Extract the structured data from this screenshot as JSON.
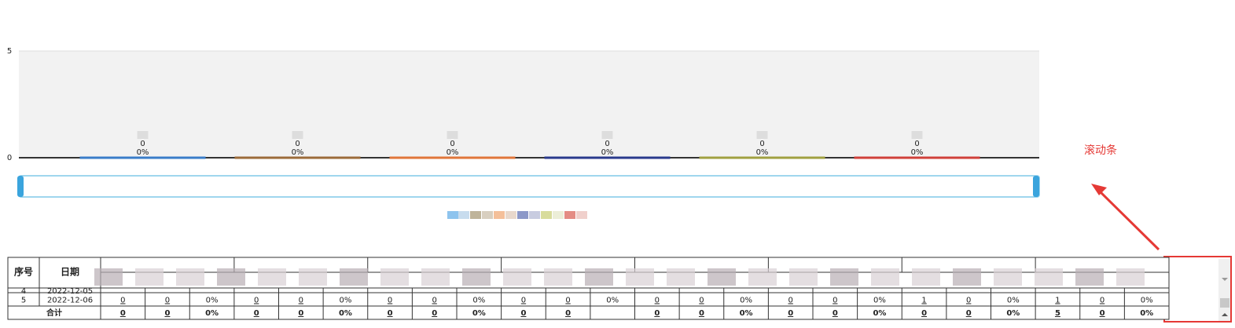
{
  "chart_data": {
    "type": "bar",
    "categories": [
      null,
      null,
      null,
      null,
      null,
      null
    ],
    "values": [
      0,
      0,
      0,
      0,
      0,
      0
    ],
    "colors": [
      "#3a7dc9",
      "#9c6b3a",
      "#e0763a",
      "#2a3a8c",
      "#a0a040",
      "#d0403a"
    ],
    "percent_values": [
      0,
      0,
      0,
      0,
      0,
      0
    ],
    "percent_labels": [
      "0%",
      "0%",
      "0%",
      "0%",
      "0%",
      "0%"
    ],
    "ylim": [
      0,
      5
    ],
    "yticks": [
      0,
      5
    ],
    "grid": true
  },
  "table": {
    "headers": [
      "序号",
      "日期"
    ],
    "rows": [
      [
        "4",
        "2022-12-05"
      ],
      [
        "5",
        "2022-12-06",
        0,
        0,
        "0%",
        0,
        0,
        "0%",
        0,
        0,
        "0%",
        0,
        0,
        "0%",
        0,
        0,
        "0%",
        0,
        0,
        "0%",
        1,
        0,
        "0%",
        1,
        0,
        "0%"
      ]
    ],
    "total": {
      "label": "合计",
      "cells": [
        0,
        0,
        "0%",
        0,
        0,
        "0%",
        0,
        0,
        "0%",
        0,
        0,
        null,
        0,
        0,
        "0%",
        0,
        0,
        "0%",
        0,
        0,
        "0%",
        5,
        0,
        "0%"
      ]
    }
  },
  "annotation": "滚动条"
}
